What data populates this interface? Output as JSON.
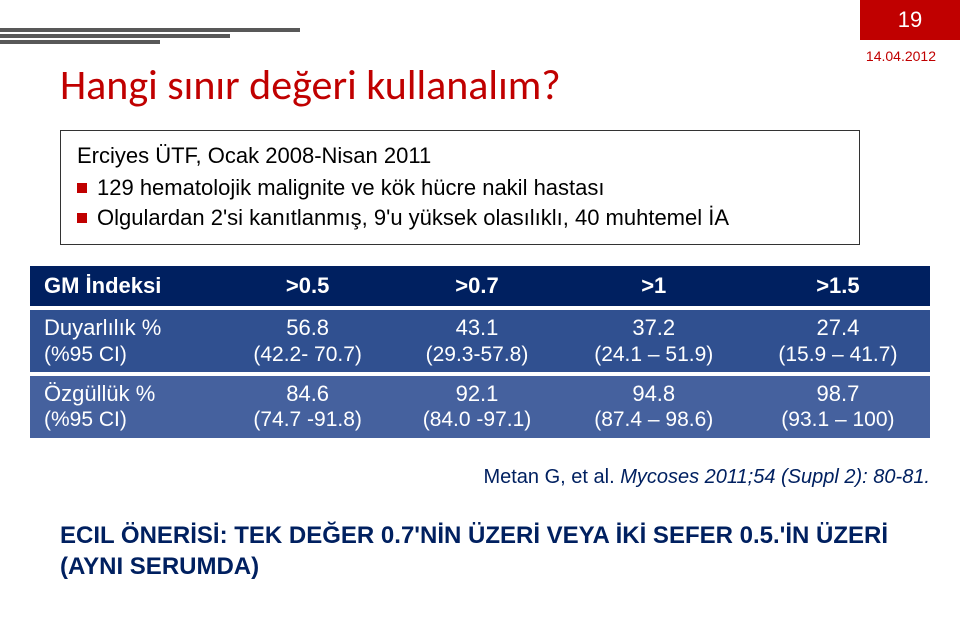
{
  "page_number": "19",
  "date": "14.04.2012",
  "title": "Hangi sınır değeri kullanalım?",
  "title_color": "#c00000",
  "bar_color": "#585858",
  "subtitle": {
    "line1": "Erciyes ÜTF, Ocak 2008-Nisan 2011",
    "bullets": [
      "129 hematolojik malignite ve kök hücre nakil hastası",
      "Olgulardan 2'si kanıtlanmış, 9'u yüksek olasılıklı, 40 muhtemel İA"
    ]
  },
  "table": {
    "header_bg": "#002060",
    "row_a_bg": "#305090",
    "row_b_bg": "#45619e",
    "headers": [
      "GM İndeksi",
      ">0.5",
      ">0.7",
      ">1",
      ">1.5"
    ],
    "rows": [
      {
        "label_main": "Duyarlılık %",
        "label_sub": "(%95 CI)",
        "cells": [
          {
            "val": "56.8",
            "ci": "(42.2- 70.7)"
          },
          {
            "val": "43.1",
            "ci": "(29.3-57.8)"
          },
          {
            "val": "37.2",
            "ci": "(24.1 – 51.9)"
          },
          {
            "val": "27.4",
            "ci": "(15.9 – 41.7)"
          }
        ]
      },
      {
        "label_main": "Özgüllük %",
        "label_sub": "(%95 CI)",
        "cells": [
          {
            "val": "84.6",
            "ci": "(74.7 -91.8)"
          },
          {
            "val": "92.1",
            "ci": "(84.0 -97.1)"
          },
          {
            "val": "94.8",
            "ci": "(87.4 – 98.6)"
          },
          {
            "val": "98.7",
            "ci": "(93.1 – 100)"
          }
        ]
      }
    ]
  },
  "citation": {
    "lead": "Metan G, et al. ",
    "ital": "Mycoses 2011;54 (Suppl 2): 80-81."
  },
  "recommendation": "ECIL ÖNERİSİ: TEK DEĞER 0.7'NİN ÜZERİ VEYA İKİ SEFER 0.5.'İN ÜZERİ (AYNI SERUMDA)",
  "colors": {
    "accent_red": "#c00000",
    "navy": "#002060"
  }
}
